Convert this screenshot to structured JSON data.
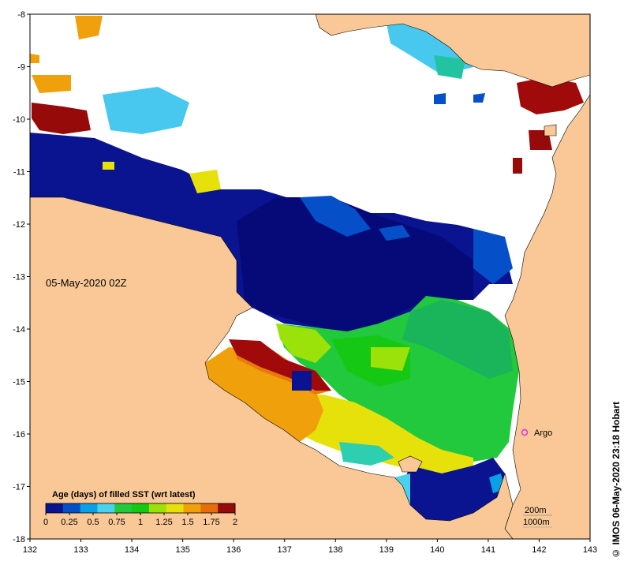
{
  "map": {
    "date_label": "05-May-2020 02Z",
    "credit": "© IMOS 06-May-2020 23:18 Hobart",
    "argo_label": "Argo",
    "isobath_labels": [
      "200m",
      "1000m"
    ],
    "x_ticks": [
      "132",
      "133",
      "134",
      "135",
      "136",
      "137",
      "138",
      "139",
      "140",
      "141",
      "142",
      "143"
    ],
    "y_ticks": [
      "-8",
      "-9",
      "-10",
      "-11",
      "-12",
      "-13",
      "-14",
      "-15",
      "-16",
      "-17",
      "-18"
    ],
    "lon_range": [
      132,
      143
    ],
    "lat_range": [
      -18,
      -8
    ],
    "colors": {
      "land": "#f9c896",
      "no_data": "#ffffff",
      "argo_marker": "#e030e0"
    }
  },
  "colorbar": {
    "title": "Age (days) of filled SST (wrt latest)",
    "ticks": [
      "0",
      "0.25",
      "0.5",
      "0.75",
      "1",
      "1.25",
      "1.5",
      "1.75",
      "2"
    ],
    "colors": [
      "#0a1490",
      "#0550c8",
      "#0aa0e6",
      "#48d2ec",
      "#22c93c",
      "#14c814",
      "#9be10a",
      "#e6e10a",
      "#f0a00a",
      "#e66e0a",
      "#960a0a"
    ]
  }
}
